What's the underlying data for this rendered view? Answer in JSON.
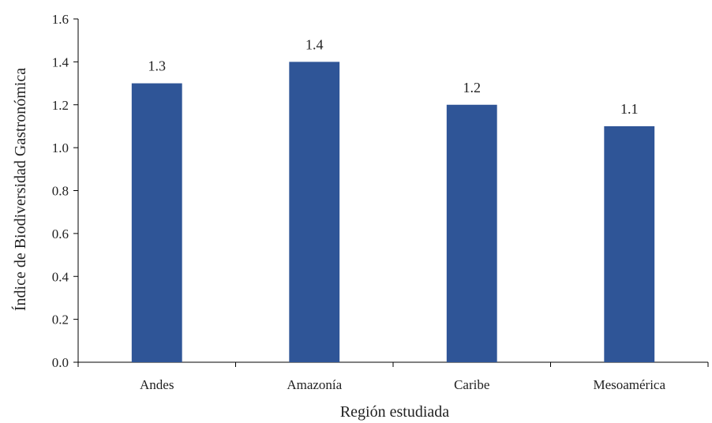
{
  "chart_data": {
    "type": "bar",
    "categories": [
      "Andes",
      "Amazonía",
      "Caribe",
      "Mesoamérica"
    ],
    "values": [
      1.3,
      1.4,
      1.2,
      1.1
    ],
    "data_labels": [
      "1.3",
      "1.4",
      "1.2",
      "1.1"
    ],
    "xlabel": "Región estudiada",
    "ylabel": "Índice de Biodiversidad Gastronómica",
    "ylim": [
      0,
      1.6
    ],
    "yticks": [
      "0.0",
      "0.2",
      "0.4",
      "0.6",
      "0.8",
      "1.0",
      "1.2",
      "1.4",
      "1.6"
    ],
    "grid": false,
    "bar_color": "#2f5597"
  }
}
